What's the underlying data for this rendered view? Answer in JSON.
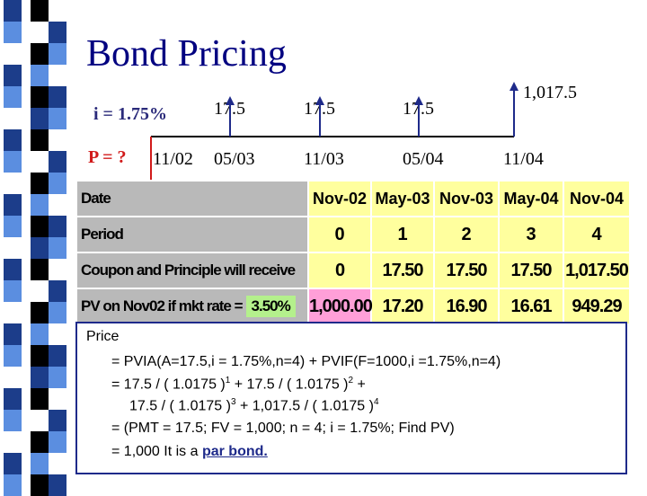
{
  "title": "Bond Pricing",
  "timeline": {
    "rate_label": "i = 1.75%",
    "price_label": "P = ?",
    "coupons": [
      "17.5",
      "17.5",
      "17.5",
      "1,017.5"
    ],
    "dates": [
      "11/02",
      "05/03",
      "11/03",
      "05/04",
      "11/04"
    ]
  },
  "table": {
    "row_labels": {
      "date": "Date",
      "period": "Period",
      "cashflow": "Coupon and Principle will receive",
      "pv": "PV on Nov02 if mkt rate ="
    },
    "market_rate": "3.50%",
    "dates": [
      "Nov-02",
      "May-03",
      "Nov-03",
      "May-04",
      "Nov-04"
    ],
    "periods": [
      "0",
      "1",
      "2",
      "3",
      "4"
    ],
    "cashflows": [
      "0",
      "17.50",
      "17.50",
      "17.50",
      "1,017.50"
    ],
    "pvs": [
      "1,000.00",
      "17.20",
      "16.90",
      "16.61",
      "949.29"
    ]
  },
  "price": {
    "heading": "Price",
    "line1": "= PVIA(A=17.5,i = 1.75%,n=4) + PVIF(F=1000,i =1.75%,n=4)",
    "line2_a": "= 17.5 / ( 1.0175 )",
    "line2_exp1": "1",
    "line2_b": " + 17.5 / ( 1.0175 )",
    "line2_exp2": "2",
    "line2_c": " +",
    "line3_a": "17.5 / ( 1.0175 )",
    "line3_exp1": "3",
    "line3_b": " + 1,017.5 / ( 1.0175 )",
    "line3_exp2": "4",
    "line4": "= (PMT = 17.5; FV = 1,000; n = 4; i = 1.75%; Find PV)",
    "line5_a": "= 1,000 It is a ",
    "line5_link": "par bond."
  },
  "colors": {
    "title": "#000080",
    "strip_blue": "#1c3d8a",
    "strip_light": "#5b8ee0",
    "table_yellow": "#ffff9e",
    "table_grey": "#b9b9b9",
    "rate_green": "#b4f08c",
    "pv_pink": "#ff9fd8",
    "arrow_red": "#d11a1a",
    "arrow_blue": "#1e2a8a"
  }
}
